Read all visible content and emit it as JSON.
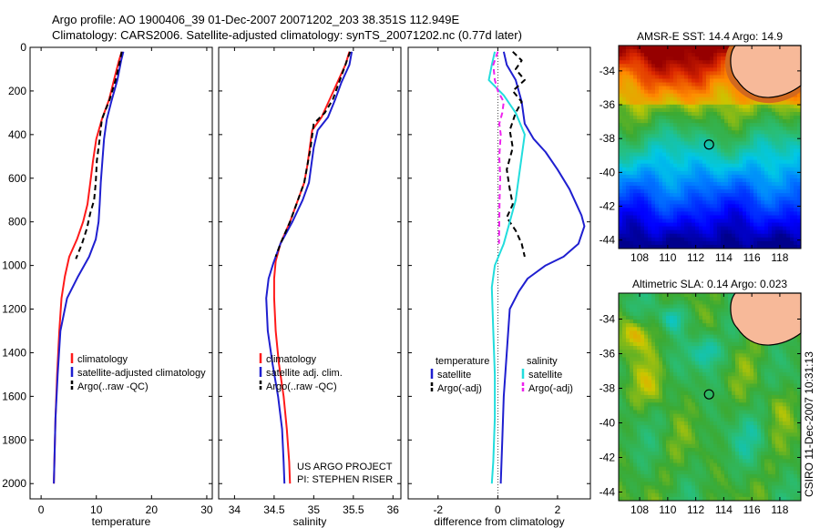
{
  "header": {
    "line1": "Argo profile: AO 1900406_39 01-Dec-2007 20071202_203 38.351S 112.949E",
    "line2": "Climatology: CARS2006. Satellite-adjusted climatology: synTS_20071202.nc (0.77d later)"
  },
  "colors": {
    "climatology": "#ff1a1a",
    "satellite": "#1f1fd0",
    "argo": "#000000",
    "sal_satellite": "#22dddd",
    "sal_argo": "#ee22ee",
    "land": "#f7b999"
  },
  "credit": {
    "line1": "US ARGO PROJECT",
    "line2": "PI: STEPHEN RISER"
  },
  "timestamp": "CSIRO 11-Dec-2007 10:31:13",
  "chart_data": [
    {
      "type": "line",
      "panel": "temperature",
      "xlabel": "temperature",
      "xlim": [
        -2,
        31
      ],
      "ylim": [
        2070,
        0
      ],
      "xticks": [
        "0",
        "10",
        "20",
        "30"
      ],
      "yticks": [
        "0",
        "200",
        "400",
        "600",
        "800",
        "1000",
        "1200",
        "1400",
        "1600",
        "1800",
        "2000"
      ],
      "legend": [
        "climatology",
        "satellite-adjusted climatology",
        "Argo(..raw -QC)"
      ],
      "legend_position": "lower-middle",
      "series": [
        {
          "name": "climatology",
          "color": "#ff1a1a",
          "style": "solid",
          "points": [
            [
              14.6,
              20
            ],
            [
              14.1,
              60
            ],
            [
              13.2,
              150
            ],
            [
              12.3,
              240
            ],
            [
              11.0,
              330
            ],
            [
              10.0,
              420
            ],
            [
              9.4,
              520
            ],
            [
              8.9,
              620
            ],
            [
              8.4,
              720
            ],
            [
              7.6,
              800
            ],
            [
              6.5,
              880
            ],
            [
              5.1,
              960
            ],
            [
              4.3,
              1050
            ],
            [
              3.7,
              1150
            ],
            [
              3.3,
              1300
            ],
            [
              2.9,
              1500
            ],
            [
              2.6,
              1700
            ],
            [
              2.4,
              1900
            ],
            [
              2.3,
              2000
            ]
          ]
        },
        {
          "name": "satellite-adjusted climatology",
          "color": "#1f1fd0",
          "style": "solid",
          "points": [
            [
              14.9,
              20
            ],
            [
              14.5,
              60
            ],
            [
              13.8,
              150
            ],
            [
              12.7,
              250
            ],
            [
              11.9,
              330
            ],
            [
              11.4,
              420
            ],
            [
              11.1,
              520
            ],
            [
              10.8,
              620
            ],
            [
              10.6,
              720
            ],
            [
              10.4,
              800
            ],
            [
              9.9,
              880
            ],
            [
              8.7,
              960
            ],
            [
              6.7,
              1050
            ],
            [
              4.7,
              1150
            ],
            [
              3.5,
              1300
            ],
            [
              3.0,
              1500
            ],
            [
              2.6,
              1700
            ],
            [
              2.4,
              1900
            ],
            [
              2.3,
              2000
            ]
          ]
        },
        {
          "name": "Argo(..raw -QC)",
          "color": "#000000",
          "style": "dash",
          "points": [
            [
              14.6,
              20
            ],
            [
              14.3,
              60
            ],
            [
              13.5,
              150
            ],
            [
              12.4,
              240
            ],
            [
              11.0,
              330
            ],
            [
              10.6,
              420
            ],
            [
              10.1,
              520
            ],
            [
              9.9,
              620
            ],
            [
              9.6,
              700
            ],
            [
              8.9,
              760
            ],
            [
              8.3,
              830
            ],
            [
              7.4,
              900
            ],
            [
              6.3,
              970
            ]
          ]
        }
      ]
    },
    {
      "type": "line",
      "panel": "salinity",
      "xlabel": "salinity",
      "xlim": [
        33.8,
        36.1
      ],
      "ylim": [
        2070,
        0
      ],
      "xticks": [
        "34",
        "34.5",
        "35",
        "35.5",
        "36"
      ],
      "legend": [
        "climatology",
        "satellite adj. clim.",
        "Argo(..raw -QC)"
      ],
      "legend_position": "lower-middle",
      "series": [
        {
          "name": "climatology",
          "color": "#ff1a1a",
          "style": "solid",
          "points": [
            [
              35.45,
              20
            ],
            [
              35.4,
              80
            ],
            [
              35.3,
              160
            ],
            [
              35.2,
              240
            ],
            [
              35.1,
              320
            ],
            [
              34.98,
              380
            ],
            [
              34.95,
              460
            ],
            [
              34.92,
              540
            ],
            [
              34.88,
              620
            ],
            [
              34.8,
              700
            ],
            [
              34.7,
              800
            ],
            [
              34.58,
              900
            ],
            [
              34.52,
              980
            ],
            [
              34.5,
              1060
            ],
            [
              34.5,
              1150
            ],
            [
              34.52,
              1300
            ],
            [
              34.56,
              1450
            ],
            [
              34.62,
              1600
            ],
            [
              34.66,
              1750
            ],
            [
              34.69,
              1900
            ],
            [
              34.7,
              2000
            ]
          ]
        },
        {
          "name": "satellite adj. clim.",
          "color": "#1f1fd0",
          "style": "solid",
          "points": [
            [
              35.48,
              20
            ],
            [
              35.45,
              80
            ],
            [
              35.35,
              160
            ],
            [
              35.27,
              240
            ],
            [
              35.18,
              320
            ],
            [
              35.05,
              380
            ],
            [
              35.0,
              460
            ],
            [
              34.97,
              540
            ],
            [
              34.94,
              620
            ],
            [
              34.86,
              700
            ],
            [
              34.73,
              800
            ],
            [
              34.58,
              900
            ],
            [
              34.49,
              990
            ],
            [
              34.43,
              1060
            ],
            [
              34.4,
              1150
            ],
            [
              34.42,
              1300
            ],
            [
              34.48,
              1450
            ],
            [
              34.55,
              1600
            ],
            [
              34.6,
              1750
            ],
            [
              34.62,
              1900
            ],
            [
              34.63,
              2000
            ]
          ]
        },
        {
          "name": "Argo(..raw -QC)",
          "color": "#000000",
          "style": "dash",
          "points": [
            [
              35.46,
              20
            ],
            [
              35.4,
              80
            ],
            [
              35.32,
              160
            ],
            [
              35.24,
              240
            ],
            [
              35.14,
              300
            ],
            [
              35.0,
              350
            ],
            [
              34.96,
              460
            ],
            [
              34.92,
              540
            ],
            [
              34.88,
              620
            ],
            [
              34.8,
              700
            ],
            [
              34.7,
              800
            ],
            [
              34.58,
              900
            ],
            [
              34.52,
              960
            ]
          ]
        }
      ]
    },
    {
      "type": "line",
      "panel": "difference",
      "xlabel": "difference from climatology",
      "xlim": [
        -3,
        3.1
      ],
      "ylim": [
        2070,
        0
      ],
      "xticks": [
        "-2",
        "0",
        "2"
      ],
      "legend_headers": [
        "temperature",
        "salinity"
      ],
      "legend": [
        "satellite",
        "Argo(-adj)",
        "satellite",
        "Argo(-adj)"
      ],
      "legend_position": "lower-middle",
      "series": [
        {
          "name": "satellite",
          "group": "temperature",
          "color": "#1f1fd0",
          "style": "solid",
          "points": [
            [
              0.2,
              20
            ],
            [
              0.3,
              80
            ],
            [
              0.6,
              150
            ],
            [
              0.8,
              250
            ],
            [
              0.9,
              350
            ],
            [
              1.2,
              420
            ],
            [
              1.6,
              480
            ],
            [
              2.0,
              560
            ],
            [
              2.4,
              650
            ],
            [
              2.8,
              770
            ],
            [
              2.9,
              820
            ],
            [
              2.7,
              900
            ],
            [
              2.2,
              960
            ],
            [
              1.6,
              1000
            ],
            [
              1.0,
              1060
            ],
            [
              0.7,
              1120
            ],
            [
              0.4,
              1200
            ],
            [
              0.3,
              1400
            ],
            [
              0.2,
              1600
            ],
            [
              0.15,
              1800
            ],
            [
              0.1,
              2000
            ]
          ]
        },
        {
          "name": "Argo(-adj)",
          "group": "temperature",
          "color": "#000000",
          "style": "dash",
          "points": [
            [
              0.5,
              20
            ],
            [
              0.8,
              60
            ],
            [
              0.6,
              100
            ],
            [
              0.9,
              150
            ],
            [
              0.5,
              200
            ],
            [
              0.8,
              250
            ],
            [
              0.6,
              300
            ],
            [
              0.4,
              380
            ],
            [
              0.5,
              460
            ],
            [
              0.3,
              560
            ],
            [
              0.4,
              650
            ],
            [
              0.5,
              720
            ],
            [
              0.3,
              780
            ],
            [
              0.6,
              840
            ],
            [
              0.8,
              900
            ],
            [
              0.9,
              960
            ]
          ]
        },
        {
          "name": "satellite",
          "group": "salinity",
          "color": "#22dddd",
          "style": "solid",
          "points": [
            [
              -0.1,
              20
            ],
            [
              -0.2,
              80
            ],
            [
              -0.3,
              150
            ],
            [
              0.2,
              220
            ],
            [
              0.6,
              300
            ],
            [
              0.9,
              400
            ],
            [
              0.8,
              500
            ],
            [
              0.7,
              600
            ],
            [
              0.6,
              700
            ],
            [
              0.4,
              800
            ],
            [
              0.2,
              900
            ],
            [
              -0.1,
              1000
            ],
            [
              -0.2,
              1100
            ],
            [
              -0.15,
              1300
            ],
            [
              -0.1,
              1500
            ],
            [
              -0.1,
              1700
            ],
            [
              -0.15,
              1900
            ],
            [
              -0.2,
              2000
            ]
          ]
        },
        {
          "name": "Argo(-adj)",
          "group": "salinity",
          "color": "#ee22ee",
          "style": "dash",
          "points": [
            [
              0.0,
              20
            ],
            [
              -0.15,
              80
            ],
            [
              -0.1,
              150
            ],
            [
              0.0,
              200
            ],
            [
              0.2,
              250
            ],
            [
              0.15,
              300
            ],
            [
              0.05,
              350
            ],
            [
              0.1,
              400
            ],
            [
              0.05,
              500
            ],
            [
              0.08,
              600
            ],
            [
              0.06,
              700
            ],
            [
              0.05,
              800
            ],
            [
              0.04,
              900
            ]
          ]
        }
      ]
    },
    {
      "type": "heatmap",
      "panel": "sst-map",
      "title": "AMSR-E SST: 14.4 Argo: 14.9",
      "xlim": [
        106.5,
        119.5
      ],
      "ylim": [
        -44.5,
        -32.5
      ],
      "xticks": [
        "108",
        "110",
        "112",
        "114",
        "116",
        "118"
      ],
      "yticks": [
        "-34",
        "-36",
        "-38",
        "-40",
        "-42",
        "-44"
      ],
      "marker": {
        "lon": 112.949,
        "lat": -38.351
      }
    },
    {
      "type": "heatmap",
      "panel": "sla-map",
      "title": "Altimetric SLA: 0.14 Argo: 0.023",
      "xlim": [
        106.5,
        119.5
      ],
      "ylim": [
        -44.5,
        -32.5
      ],
      "xticks": [
        "108",
        "110",
        "112",
        "114",
        "116",
        "118"
      ],
      "yticks": [
        "-34",
        "-36",
        "-38",
        "-40",
        "-42",
        "-44"
      ],
      "marker": {
        "lon": 112.949,
        "lat": -38.351
      }
    }
  ]
}
